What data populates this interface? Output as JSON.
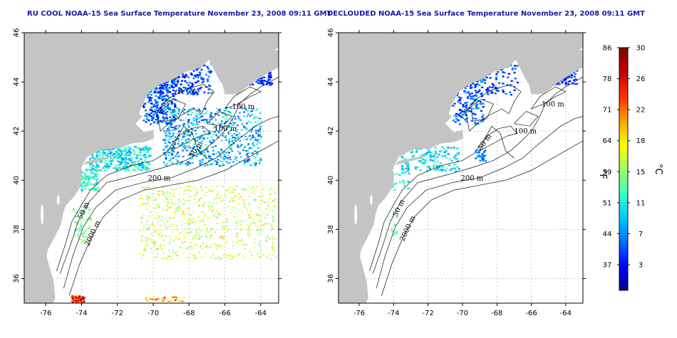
{
  "maps": [
    {
      "title": "RU COOL NOAA-15 Sea Surface Temperature November 23, 2008 09:11 GMT",
      "contour_labels": [
        {
          "text": "100 m",
          "lon": -65.6,
          "lat": 42.9
        },
        {
          "text": "100 m",
          "lon": -66.6,
          "lat": 42.0
        },
        {
          "text": "50 m",
          "lon": -67.8,
          "lat": 40.9
        },
        {
          "text": "200 m",
          "lon": -70.3,
          "lat": 40.0
        },
        {
          "text": "50 m",
          "lon": -74.0,
          "lat": 38.4
        },
        {
          "text": "2000 m",
          "lon": -73.6,
          "lat": 37.3
        }
      ]
    },
    {
      "title": "DECLOUDED NOAA-15 Sea Surface Temperature November 23, 2008 09:11 GMT",
      "contour_labels": [
        {
          "text": "100 m",
          "lon": -65.4,
          "lat": 43.0
        },
        {
          "text": "100 m",
          "lon": -67.0,
          "lat": 41.9
        },
        {
          "text": "50 m",
          "lon": -68.9,
          "lat": 41.2
        },
        {
          "text": "200 m",
          "lon": -70.1,
          "lat": 40.0
        },
        {
          "text": "50 m",
          "lon": -73.8,
          "lat": 38.5
        },
        {
          "text": "2000 m",
          "lon": -73.4,
          "lat": 37.5
        }
      ]
    }
  ],
  "axes": {
    "x_ticks": [
      -76,
      -74,
      -72,
      -70,
      -68,
      -66,
      -64
    ],
    "y_ticks": [
      36,
      38,
      40,
      42,
      44,
      46
    ],
    "xlim": [
      -77.2,
      -63.0
    ],
    "ylim": [
      35.0,
      46.0
    ]
  },
  "colorbar": {
    "celsius_ticks": [
      30,
      26,
      22,
      18,
      15,
      11,
      7,
      3
    ],
    "fahrenheit_ticks": [
      86,
      78,
      71,
      64,
      59,
      51,
      44,
      37
    ],
    "celsius_label": "°C",
    "fahrenheit_label": "°F",
    "range_c": [
      0,
      30
    ],
    "colors": [
      "#00008f",
      "#0000ff",
      "#0070ff",
      "#00c8ff",
      "#40ffc0",
      "#a0ff60",
      "#ffff00",
      "#ffa000",
      "#ff3000",
      "#c00000",
      "#800000"
    ]
  },
  "colors": {
    "land": "#c4c4c4",
    "ocean": "#ffffff",
    "title": "#1a1aa6",
    "grid": "#bdbdbd"
  }
}
